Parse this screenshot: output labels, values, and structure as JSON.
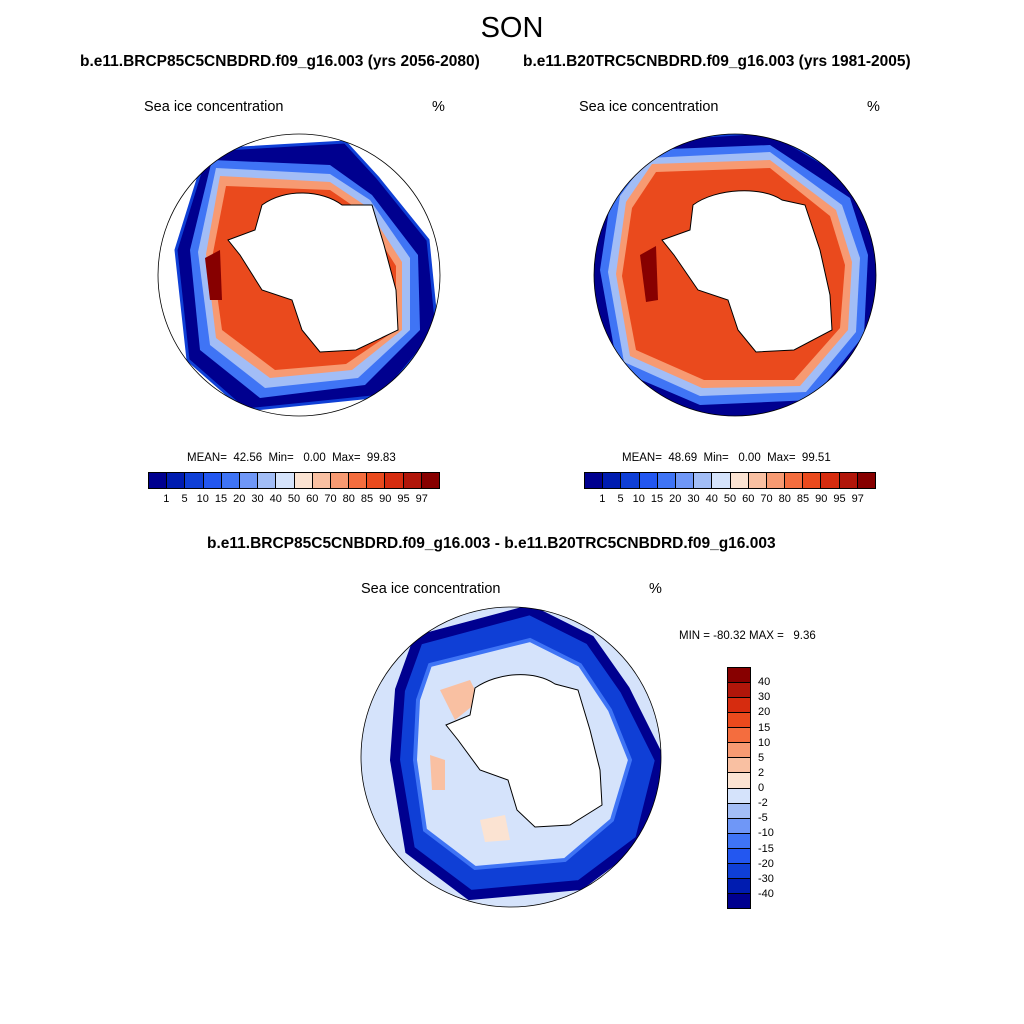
{
  "figure": {
    "season": "SON",
    "subtitle_runs": {
      "left": "b.e11.BRCP85C5CNBDRD.f09_g16.003 (yrs 2056-2080)",
      "right": "b.e11.B20TRC5CNBDRD.f09_g16.003 (yrs 1981-2005)"
    },
    "diff_title": "b.e11.BRCP85C5CNBDRD.f09_g16.003 - b.e11.B20TRC5CNBDRD.f09_g16.003"
  },
  "panels": [
    {
      "variable": "Sea ice concentration",
      "units": "%",
      "stats": "MEAN=  42.56  Min=   0.00  Max=  99.83"
    },
    {
      "variable": "Sea ice concentration",
      "units": "%",
      "stats": "MEAN=  48.69  Min=   0.00  Max=  99.51"
    },
    {
      "variable": "Sea ice concentration",
      "units": "%",
      "stats": "MIN = -80.32 MAX =   9.36"
    }
  ],
  "colorbar_abs": {
    "labels": [
      "1",
      "5",
      "10",
      "15",
      "20",
      "30",
      "40",
      "50",
      "60",
      "70",
      "80",
      "85",
      "90",
      "95",
      "97"
    ],
    "colors": [
      "#00008f",
      "#001cb0",
      "#0f3fd6",
      "#2357f0",
      "#3f74f5",
      "#6f97f7",
      "#a2bdf6",
      "#d5e3fb",
      "#fbe3d2",
      "#f9c0a2",
      "#f79a72",
      "#f46d3e",
      "#ea4a1d",
      "#d62c0f",
      "#b1160a",
      "#870000"
    ]
  },
  "colorbar_diff": {
    "labels": [
      "40",
      "30",
      "20",
      "15",
      "10",
      "5",
      "2",
      "0",
      "-2",
      "-5",
      "-10",
      "-15",
      "-20",
      "-30",
      "-40"
    ],
    "colors": [
      "#870000",
      "#b1160a",
      "#d62c0f",
      "#ea4a1d",
      "#f46d3e",
      "#f79a72",
      "#f9c0a2",
      "#fbe3d2",
      "#d5e3fb",
      "#a2bdf6",
      "#6f97f7",
      "#3f74f5",
      "#2357f0",
      "#0f3fd6",
      "#001cb0",
      "#00008f"
    ]
  }
}
